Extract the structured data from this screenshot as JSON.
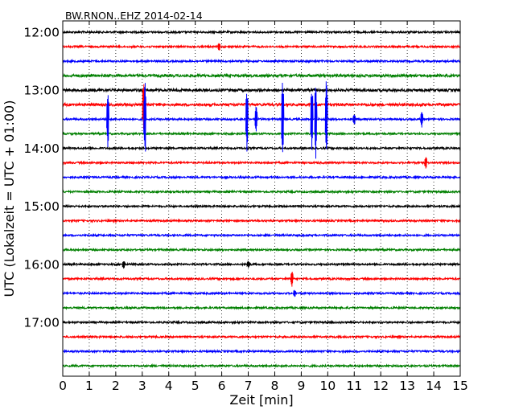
{
  "chart_data": {
    "type": "line",
    "title": "BW.RNON..EHZ 2014-02-14",
    "xlabel": "Zeit  [min]",
    "ylabel": "UTC (Lokalzeit = UTC + 01:00)",
    "xlim": [
      0,
      15
    ],
    "x_ticks": [
      "0",
      "1",
      "2",
      "3",
      "4",
      "5",
      "6",
      "7",
      "8",
      "9",
      "10",
      "11",
      "12",
      "13",
      "14",
      "15"
    ],
    "y_ticks": [
      "12:00",
      "13:00",
      "14:00",
      "15:00",
      "16:00",
      "17:00"
    ],
    "trace_interval_min": 15,
    "trace_colors": [
      "#000000",
      "#ff0000",
      "#0000ff",
      "#008000"
    ],
    "traces": [
      {
        "start": "12:00",
        "color": "#000000"
      },
      {
        "start": "12:15",
        "color": "#ff0000"
      },
      {
        "start": "12:30",
        "color": "#0000ff"
      },
      {
        "start": "12:45",
        "color": "#008000"
      },
      {
        "start": "13:00",
        "color": "#000000"
      },
      {
        "start": "13:15",
        "color": "#ff0000"
      },
      {
        "start": "13:30",
        "color": "#0000ff"
      },
      {
        "start": "13:45",
        "color": "#008000"
      },
      {
        "start": "14:00",
        "color": "#000000"
      },
      {
        "start": "14:15",
        "color": "#ff0000"
      },
      {
        "start": "14:30",
        "color": "#0000ff"
      },
      {
        "start": "14:45",
        "color": "#008000"
      },
      {
        "start": "15:00",
        "color": "#000000"
      },
      {
        "start": "15:15",
        "color": "#ff0000"
      },
      {
        "start": "15:30",
        "color": "#0000ff"
      },
      {
        "start": "15:45",
        "color": "#008000"
      },
      {
        "start": "16:00",
        "color": "#000000"
      },
      {
        "start": "16:15",
        "color": "#ff0000"
      },
      {
        "start": "16:30",
        "color": "#0000ff"
      },
      {
        "start": "16:45",
        "color": "#008000"
      },
      {
        "start": "17:00",
        "color": "#000000"
      },
      {
        "start": "17:15",
        "color": "#ff0000"
      },
      {
        "start": "17:30",
        "color": "#0000ff"
      },
      {
        "start": "17:45",
        "color": "#008000"
      }
    ],
    "spikes": [
      {
        "trace": 6,
        "x": 1.7,
        "amp": 2.0
      },
      {
        "trace": 5,
        "x": 3.05,
        "amp": 2.0
      },
      {
        "trace": 6,
        "x": 3.1,
        "amp": 3.0
      },
      {
        "trace": 6,
        "x": 6.95,
        "amp": 2.6
      },
      {
        "trace": 6,
        "x": 7.3,
        "amp": 1.0
      },
      {
        "trace": 6,
        "x": 8.3,
        "amp": 3.0
      },
      {
        "trace": 6,
        "x": 9.4,
        "amp": 2.6
      },
      {
        "trace": 6,
        "x": 9.55,
        "amp": 3.0
      },
      {
        "trace": 6,
        "x": 9.95,
        "amp": 3.0
      },
      {
        "trace": 6,
        "x": 11.0,
        "amp": 0.5
      },
      {
        "trace": 6,
        "x": 13.55,
        "amp": 0.6
      },
      {
        "trace": 9,
        "x": 13.7,
        "amp": 0.5
      },
      {
        "trace": 17,
        "x": 8.65,
        "amp": 0.6
      },
      {
        "trace": 18,
        "x": 8.75,
        "amp": 0.3
      },
      {
        "trace": 1,
        "x": 5.9,
        "amp": 0.35
      },
      {
        "trace": 16,
        "x": 2.3,
        "amp": 0.3
      },
      {
        "trace": 16,
        "x": 7.0,
        "amp": 0.3
      }
    ],
    "grid": "vertical dotted"
  }
}
